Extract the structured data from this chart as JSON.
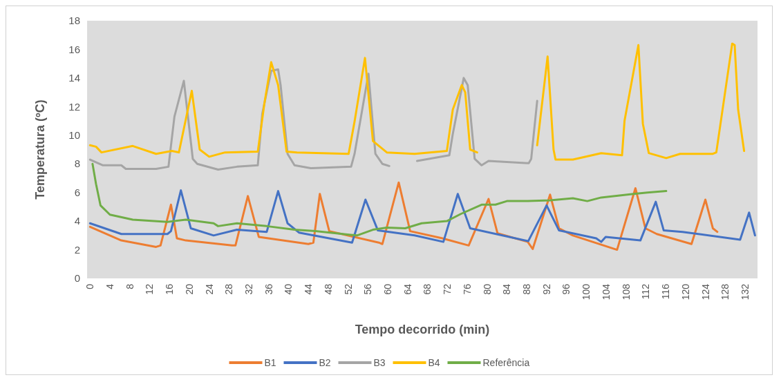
{
  "chart_data": {
    "type": "line",
    "xlabel": "Tempo decorrido (min)",
    "ylabel": "Temperatura (ºC)",
    "xlim": [
      -0.6,
      134.5
    ],
    "xticks": [
      0,
      4,
      8,
      12,
      16,
      20,
      24,
      28,
      32,
      36,
      40,
      44,
      48,
      52,
      56,
      60,
      64,
      68,
      72,
      76,
      80,
      84,
      88,
      92,
      96,
      100,
      104,
      108,
      112,
      116,
      120,
      124,
      128,
      132
    ],
    "ylim": [
      0,
      18
    ],
    "yticks": [
      0,
      2,
      4,
      6,
      8,
      10,
      12,
      14,
      16,
      18
    ],
    "grid": false,
    "legend": "bottom",
    "marker": "none",
    "line_style": "solid",
    "series": [
      {
        "name": "B1",
        "color": "#ed7d31",
        "x": [
          0,
          6.3,
          13.3,
          14.2,
          16.3,
          17.5,
          19.3,
          28.6,
          29.3,
          31.8,
          34,
          44,
          45,
          46.3,
          48.2,
          58.2,
          58.9,
          62.2,
          64.5,
          71,
          76.3,
          80.3,
          82.1,
          88.2,
          89.2,
          92.7,
          94.5,
          97.3,
          106.2,
          109.9,
          111.9,
          114.2,
          121.2,
          124,
          125.5,
          126.4
        ],
        "values": [
          3.6,
          2.65,
          2.2,
          2.3,
          5.15,
          2.8,
          2.65,
          2.3,
          2.3,
          5.75,
          2.9,
          2.4,
          2.5,
          5.9,
          3.3,
          2.5,
          2.4,
          6.7,
          3.3,
          2.8,
          2.3,
          5.55,
          3.15,
          2.55,
          2.05,
          5.85,
          3.5,
          3.0,
          2.0,
          6.3,
          3.5,
          3.1,
          2.4,
          5.5,
          3.5,
          3.25
        ]
      },
      {
        "name": "B2",
        "color": "#4472c4",
        "x": [
          0,
          6.3,
          10.9,
          15.6,
          16.3,
          18.3,
          20.3,
          24.9,
          29.6,
          35.6,
          37.9,
          39.8,
          42.1,
          52.8,
          55.5,
          58,
          65.4,
          71.2,
          74.1,
          76.6,
          88.3,
          92,
          94.5,
          102,
          103,
          103.9,
          110.9,
          114,
          115.6,
          119.4,
          131,
          132.8,
          134
        ],
        "values": [
          3.85,
          3.1,
          3.1,
          3.1,
          3.3,
          6.15,
          3.5,
          3.0,
          3.4,
          3.25,
          6.1,
          3.85,
          3.2,
          2.5,
          5.5,
          3.35,
          3.0,
          2.55,
          5.9,
          3.5,
          2.6,
          5.1,
          3.35,
          2.8,
          2.55,
          2.9,
          2.65,
          5.35,
          3.35,
          3.25,
          2.7,
          4.6,
          3.0
        ]
      },
      {
        "name": "B3",
        "color": "#a5a5a5",
        "x": [
          0,
          2.6,
          6.3,
          7.2,
          13.3,
          15.8,
          17,
          18.9,
          20.7,
          21.6,
          25.8,
          29.6,
          33.8,
          34.7,
          36.5,
          37.9,
          38.4,
          39.8,
          41.2,
          44.5,
          52.6,
          53.3,
          56.1,
          57.5,
          58.9,
          60.3,
          62,
          65.9,
          72.4,
          73.1,
          75.3,
          76.1,
          77.5,
          78.9,
          80.3,
          88.4,
          88.9,
          90.1
        ],
        "values": [
          8.3,
          7.9,
          7.9,
          7.65,
          7.65,
          7.8,
          11.3,
          13.8,
          8.35,
          8.0,
          7.6,
          7.8,
          7.9,
          11.5,
          14.5,
          14.6,
          13.5,
          8.7,
          7.9,
          7.7,
          7.8,
          8.7,
          14.3,
          8.7,
          8.0,
          7.85,
          null,
          8.2,
          8.6,
          10.1,
          14.0,
          13.5,
          8.35,
          7.9,
          8.2,
          8.05,
          8.35,
          12.4
        ]
      },
      {
        "name": "B4",
        "color": "#ffc000",
        "x": [
          0,
          1.2,
          2.3,
          8.6,
          13.3,
          16.5,
          17.9,
          20.5,
          22.1,
          24,
          27.2,
          33.8,
          35.1,
          36.5,
          37.9,
          39.6,
          41.7,
          52.1,
          53.3,
          55.4,
          57,
          59.8,
          65.4,
          71.9,
          73.1,
          74.9,
          75.6,
          76.6,
          78,
          84,
          90.1,
          92.2,
          93.4,
          93.8,
          97.3,
          103,
          107.2,
          107.7,
          110.5,
          111.4,
          112.6,
          116.1,
          118.9,
          125.5,
          126.2,
          127.8,
          129.4,
          129.9,
          130.6,
          131.8
        ],
        "values": [
          9.3,
          9.2,
          8.8,
          9.25,
          8.7,
          8.9,
          8.8,
          13.1,
          9.0,
          8.5,
          8.8,
          8.85,
          12.15,
          15.1,
          13.5,
          8.85,
          8.8,
          8.7,
          10.95,
          15.4,
          9.6,
          8.8,
          8.7,
          8.9,
          11.8,
          13.5,
          13.0,
          9.0,
          8.8,
          null,
          9.3,
          15.5,
          9.0,
          8.3,
          8.3,
          8.75,
          8.6,
          11.0,
          16.3,
          10.8,
          8.75,
          8.4,
          8.7,
          8.7,
          8.8,
          12.6,
          16.4,
          16.3,
          11.8,
          8.9
        ]
      },
      {
        "name": "Referência",
        "color": "#70ad47",
        "x": [
          0.5,
          1.2,
          2.1,
          4,
          8.6,
          15.6,
          19.3,
          24.9,
          25.8,
          29.6,
          35.6,
          41.2,
          45.4,
          53.8,
          57,
          59.8,
          63.5,
          66.8,
          71.9,
          74.7,
          78.9,
          81.7,
          84,
          88.2,
          92.7,
          97.3,
          100.2,
          103,
          109.5,
          112.3,
          116.1
        ],
        "values": [
          8.0,
          6.6,
          5.1,
          4.45,
          4.1,
          3.95,
          4.1,
          3.85,
          3.65,
          3.85,
          3.65,
          3.4,
          3.3,
          3.0,
          3.4,
          3.55,
          3.5,
          3.85,
          4.0,
          4.5,
          5.15,
          5.15,
          5.4,
          5.4,
          5.45,
          5.6,
          5.4,
          5.65,
          5.9,
          6.0,
          6.1
        ]
      }
    ]
  }
}
